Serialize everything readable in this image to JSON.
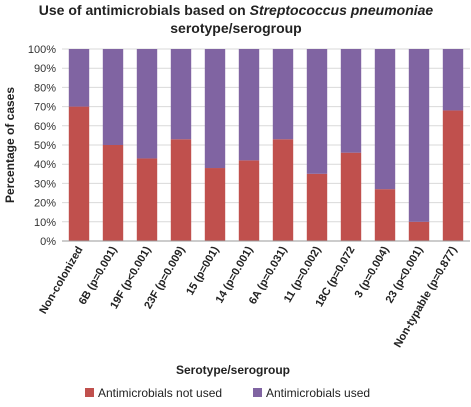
{
  "chart_data": {
    "type": "bar",
    "stacked": true,
    "percent": true,
    "title_line1": "Use of antimicrobials based on ",
    "title_italic": "Streptococcus pneumoniae",
    "title_line2": "serotype/serogroup",
    "xlabel": "Serotype/serogroup",
    "ylabel": "Percentage of cases",
    "ylim": [
      0,
      100
    ],
    "yticks": [
      "0%",
      "10%",
      "20%",
      "30%",
      "40%",
      "50%",
      "60%",
      "70%",
      "80%",
      "90%",
      "100%"
    ],
    "categories": [
      "Non-colonized",
      "6B (p=0.001)",
      "19F (p<0.001)",
      "23F (p=0.009)",
      "15 (p=001)",
      "14 (p=0.001)",
      "6A (p=0.031)",
      "11 (p=0.002)",
      "18C (p=0.072",
      "3 (p=0.004)",
      "23 (p<0.001)",
      "Non-typable (p=0.877)"
    ],
    "series": [
      {
        "name": "Antimicrobials not used",
        "color": "#c0504d",
        "values": [
          70,
          50,
          43,
          53,
          38,
          42,
          53,
          35,
          46,
          27,
          10,
          68
        ]
      },
      {
        "name": "Antimicrobials used",
        "color": "#8064a2",
        "values": [
          30,
          50,
          57,
          47,
          62,
          58,
          47,
          65,
          54,
          73,
          90,
          32
        ]
      }
    ],
    "grid": true,
    "legend_position": "bottom"
  }
}
